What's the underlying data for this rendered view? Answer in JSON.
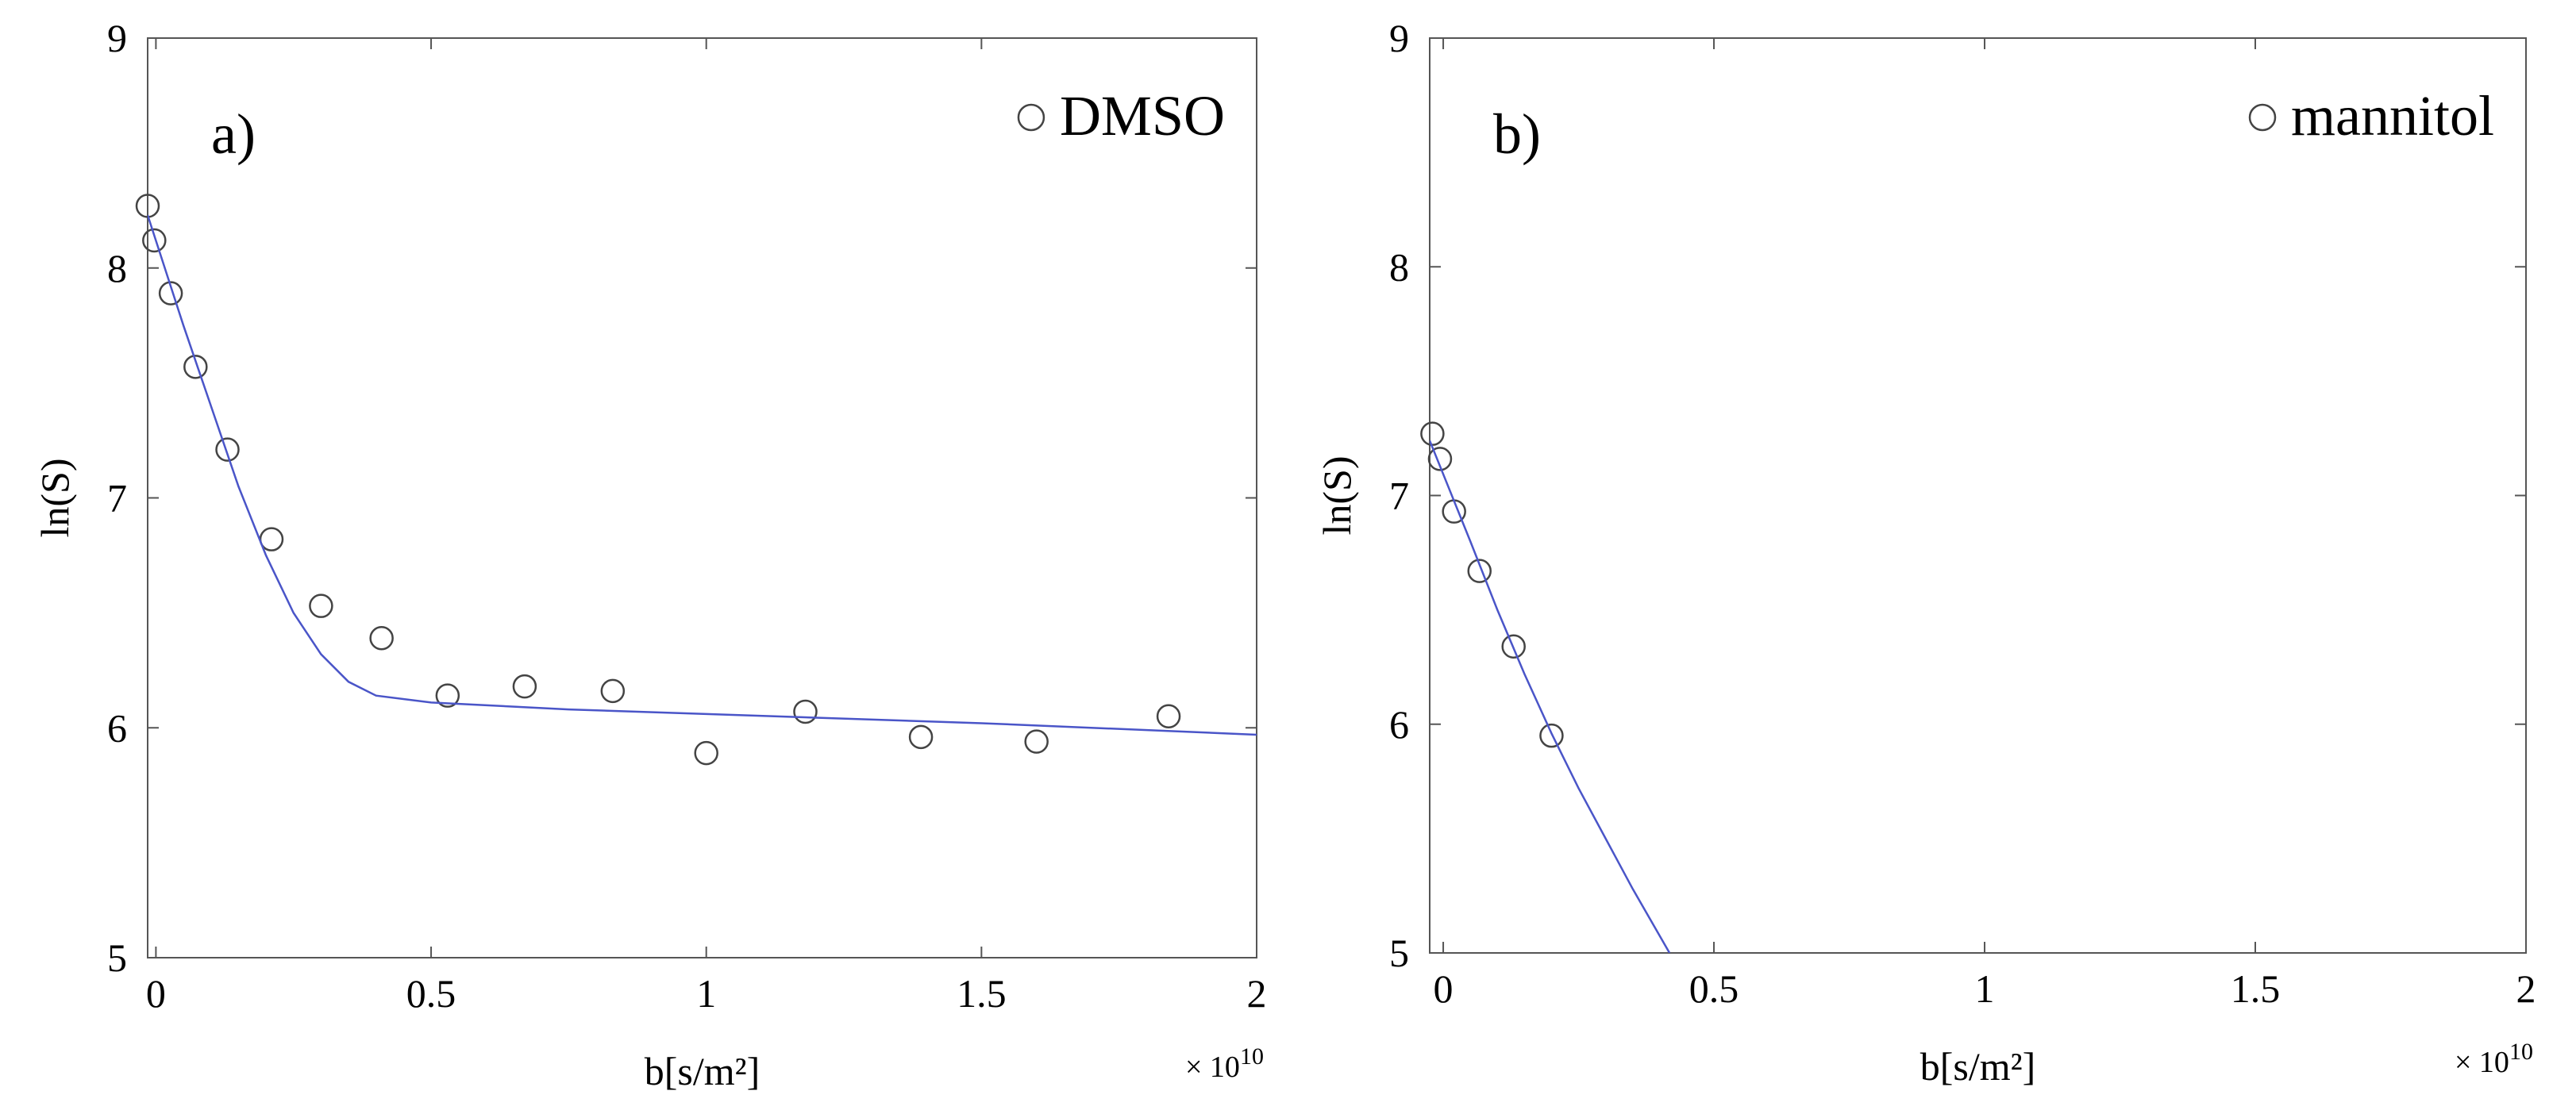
{
  "chart_data": [
    {
      "type": "scatter",
      "annotation": "a)",
      "ylabel": "ln(S)",
      "xlabel": "b[s/m²]",
      "x_multiplier": {
        "base": "× 10",
        "exponent": "10"
      },
      "xlim": [
        -0.015,
        2.0
      ],
      "ylim": [
        5,
        9
      ],
      "xticks": [
        0,
        0.5,
        1,
        1.5,
        2
      ],
      "yticks": [
        5,
        6,
        7,
        8,
        9
      ],
      "legend": "upper right",
      "series": [
        {
          "name": "DMSO",
          "color": "#444444",
          "marker": "open-circle",
          "x": [
            -0.015,
            -0.003,
            0.027,
            0.072,
            0.13,
            0.21,
            0.3,
            0.41,
            0.53,
            0.67,
            0.83,
            1.0,
            1.18,
            1.39,
            1.6,
            1.84
          ],
          "values": [
            8.27,
            8.12,
            7.89,
            7.57,
            7.21,
            6.82,
            6.53,
            6.39,
            6.14,
            6.18,
            6.16,
            5.89,
            6.07,
            5.96,
            5.94,
            6.05
          ]
        },
        {
          "color": "#4a55c8",
          "style": "line",
          "x": [
            -0.015,
            0.05,
            0.1,
            0.15,
            0.2,
            0.25,
            0.3,
            0.35,
            0.4,
            0.5,
            0.75,
            1,
            1.5,
            2.0
          ],
          "values": [
            8.23,
            7.75,
            7.4,
            7.05,
            6.75,
            6.5,
            6.32,
            6.2,
            6.14,
            6.11,
            6.08,
            6.06,
            6.02,
            5.97
          ]
        }
      ]
    },
    {
      "type": "scatter",
      "annotation": "b)",
      "ylabel": "ln(S)",
      "xlabel": "b[s/m²]",
      "x_multiplier": {
        "base": "× 10",
        "exponent": "10"
      },
      "xlim": [
        -0.025,
        2.0
      ],
      "ylim": [
        5,
        9
      ],
      "xticks": [
        0,
        0.5,
        1,
        1.5,
        2
      ],
      "yticks": [
        5,
        6,
        7,
        8,
        9
      ],
      "legend": "upper right",
      "series": [
        {
          "name": "mannitol",
          "color": "#444444",
          "marker": "open-circle",
          "x": [
            -0.02,
            -0.006,
            0.02,
            0.067,
            0.13,
            0.2
          ],
          "values": [
            7.27,
            7.16,
            6.93,
            6.67,
            6.34,
            5.95
          ]
        },
        {
          "color": "#4a55c8",
          "style": "line",
          "x": [
            -0.025,
            0.05,
            0.1,
            0.15,
            0.2,
            0.25,
            0.3,
            0.35,
            0.418
          ],
          "values": [
            7.24,
            6.8,
            6.5,
            6.22,
            5.96,
            5.72,
            5.5,
            5.28,
            5.0
          ]
        }
      ]
    }
  ]
}
